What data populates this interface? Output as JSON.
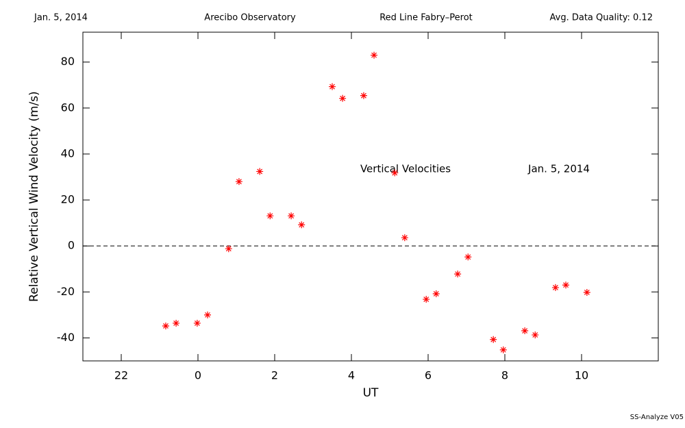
{
  "header": {
    "date": "Jan. 5, 2014",
    "site": "Arecibo Observatory",
    "instrument": "Red Line Fabry–Perot",
    "quality": "Avg. Data Quality: 0.12"
  },
  "footer": "SS-Analyze V05",
  "chart_data": {
    "type": "scatter",
    "xlabel": "UT",
    "ylabel": "Relative Vertical Wind Velocity (m/s)",
    "annotations": [
      "Vertical Velocities",
      "Jan. 5, 2014"
    ],
    "color": "#ff0000",
    "marker": "asterisk",
    "hline": 0,
    "xlim": [
      -3,
      12
    ],
    "ylim": [
      -50,
      93
    ],
    "xticks": [
      {
        "value": -2,
        "label": "22"
      },
      0,
      2,
      4,
      6,
      8,
      10
    ],
    "yticks": [
      -40,
      -20,
      0,
      20,
      40,
      60,
      80
    ],
    "x": [
      -0.84,
      -0.57,
      -0.02,
      0.25,
      0.8,
      1.07,
      1.61,
      1.88,
      2.43,
      2.7,
      3.5,
      3.77,
      4.32,
      4.59,
      5.13,
      5.39,
      5.95,
      6.21,
      6.77,
      7.04,
      7.7,
      7.96,
      8.52,
      8.79,
      9.32,
      9.59,
      10.14
    ],
    "values": [
      -34.8,
      -33.6,
      -33.6,
      -30.0,
      -1.2,
      28.0,
      32.4,
      13.1,
      13.1,
      9.2,
      69.3,
      64.2,
      65.4,
      83.0,
      31.8,
      3.6,
      -23.2,
      -20.8,
      -12.2,
      -4.8,
      -40.7,
      -45.2,
      -36.9,
      -38.7,
      -18.1,
      -17.0,
      -20.2
    ]
  }
}
